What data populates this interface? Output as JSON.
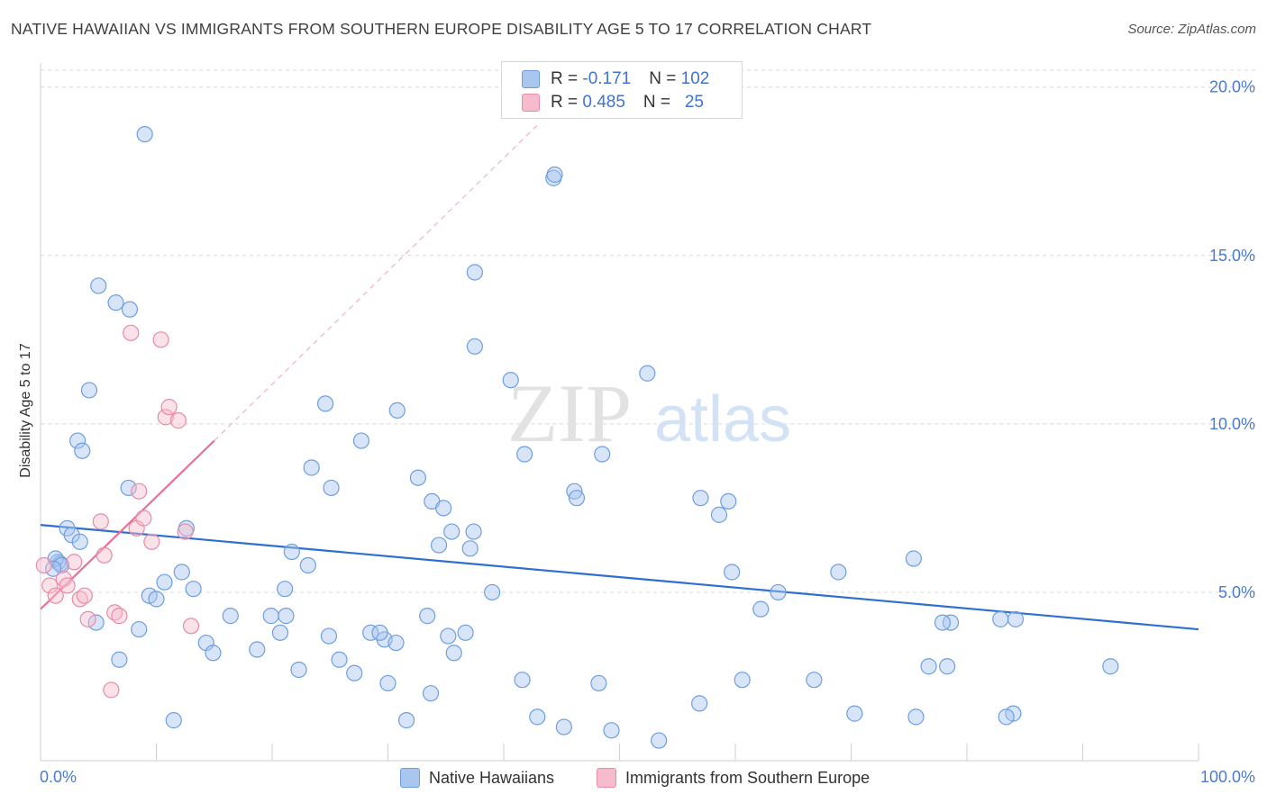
{
  "title": "NATIVE HAWAIIAN VS IMMIGRANTS FROM SOUTHERN EUROPE DISABILITY AGE 5 TO 17 CORRELATION CHART",
  "source": "Source: ZipAtlas.com",
  "watermark": {
    "zip": "ZIP",
    "atlas": "atlas"
  },
  "colors": {
    "blue_fill": "#a9c6ef",
    "blue_stroke": "#6e9ee0",
    "blue_line": "#2f6fd0",
    "pink_fill": "#f6bccd",
    "pink_stroke": "#e98aa7",
    "pink_line": "#e8719a",
    "grid": "#d9d9d9",
    "tick_text": "#4a7bd1"
  },
  "legend": {
    "rows": [
      {
        "r_label": "R = ",
        "r_value": "-0.171",
        "n_label": "N = ",
        "n_value": "102"
      },
      {
        "r_label": "R = ",
        "r_value": "0.485",
        "n_label": "N = ",
        "n_value": "  25"
      }
    ]
  },
  "chart_data": {
    "type": "scatter",
    "title": "NATIVE HAWAIIAN VS IMMIGRANTS FROM SOUTHERN EUROPE DISABILITY AGE 5 TO 17 CORRELATION CHART",
    "xlabel": "",
    "ylabel": "Disability Age 5 to 17",
    "xlim": [
      0,
      100
    ],
    "ylim": [
      0,
      20.5
    ],
    "x_ticks": [
      "0.0%",
      "100.0%"
    ],
    "y_ticks": [
      {
        "value": 5,
        "label": "5.0%"
      },
      {
        "value": 10,
        "label": "10.0%"
      },
      {
        "value": 15,
        "label": "15.0%"
      },
      {
        "value": 20,
        "label": "20.0%"
      }
    ],
    "series": [
      {
        "name": "Native Hawaiians",
        "color": "#a9c6ef",
        "r": -0.171,
        "n": 102,
        "trend": {
          "x0": 0,
          "y0": 7.0,
          "x1": 100,
          "y1": 3.9
        },
        "points": [
          [
            9,
            18.6
          ],
          [
            37.5,
            14.5
          ],
          [
            5,
            14.1
          ],
          [
            6.5,
            13.6
          ],
          [
            7.7,
            13.4
          ],
          [
            37.5,
            12.3
          ],
          [
            4.2,
            11.0
          ],
          [
            44.3,
            17.3
          ],
          [
            44.4,
            17.4
          ],
          [
            1.5,
            5.9
          ],
          [
            1.7,
            5.85
          ],
          [
            1.3,
            6.0
          ],
          [
            1.8,
            5.8
          ],
          [
            2.3,
            6.9
          ],
          [
            2.7,
            6.7
          ],
          [
            3.4,
            6.5
          ],
          [
            1.1,
            5.7
          ],
          [
            3.2,
            9.5
          ],
          [
            3.6,
            9.2
          ],
          [
            7.6,
            8.1
          ],
          [
            12.6,
            6.9
          ],
          [
            21.7,
            6.2
          ],
          [
            23.4,
            8.7
          ],
          [
            24.6,
            10.6
          ],
          [
            25.1,
            8.1
          ],
          [
            27.7,
            9.5
          ],
          [
            30.8,
            10.4
          ],
          [
            32.6,
            8.4
          ],
          [
            33.8,
            7.7
          ],
          [
            34.8,
            7.5
          ],
          [
            35.5,
            6.8
          ],
          [
            34.4,
            6.4
          ],
          [
            37.1,
            6.3
          ],
          [
            37.4,
            6.8
          ],
          [
            40.6,
            11.3
          ],
          [
            41.8,
            9.1
          ],
          [
            46.1,
            8.0
          ],
          [
            46.3,
            7.8
          ],
          [
            48.5,
            9.1
          ],
          [
            52.4,
            11.5
          ],
          [
            59.7,
            5.6
          ],
          [
            59.4,
            7.7
          ],
          [
            62.2,
            4.5
          ],
          [
            57,
            7.8
          ],
          [
            58.6,
            7.3
          ],
          [
            68.9,
            5.6
          ],
          [
            75.4,
            6.0
          ],
          [
            78.6,
            4.1
          ],
          [
            77.9,
            4.1
          ],
          [
            78.3,
            2.8
          ],
          [
            84,
            1.4
          ],
          [
            84.2,
            4.2
          ],
          [
            82.9,
            4.2
          ],
          [
            92.4,
            2.8
          ],
          [
            9.4,
            4.9
          ],
          [
            12.2,
            5.6
          ],
          [
            10.7,
            5.3
          ],
          [
            14.3,
            3.5
          ],
          [
            14.9,
            3.2
          ],
          [
            18.7,
            3.3
          ],
          [
            20.7,
            3.8
          ],
          [
            19.9,
            4.3
          ],
          [
            21.2,
            4.3
          ],
          [
            23.1,
            5.8
          ],
          [
            24.9,
            3.7
          ],
          [
            28.5,
            3.8
          ],
          [
            29.7,
            3.6
          ],
          [
            30.7,
            3.5
          ],
          [
            33.4,
            4.3
          ],
          [
            35.2,
            3.7
          ],
          [
            35.7,
            3.2
          ],
          [
            36.7,
            3.8
          ],
          [
            41.6,
            2.4
          ],
          [
            42.9,
            1.3
          ],
          [
            45.2,
            1.0
          ],
          [
            48.2,
            2.3
          ],
          [
            49.3,
            0.9
          ],
          [
            53.4,
            0.6
          ],
          [
            56.9,
            1.7
          ],
          [
            60.6,
            2.4
          ],
          [
            63.7,
            5.0
          ],
          [
            66.8,
            2.4
          ],
          [
            70.3,
            1.4
          ],
          [
            75.6,
            1.3
          ],
          [
            83.4,
            1.3
          ],
          [
            76.7,
            2.8
          ],
          [
            11.5,
            1.2
          ],
          [
            8.5,
            3.9
          ],
          [
            6.8,
            3.0
          ],
          [
            10,
            4.8
          ],
          [
            4.8,
            4.1
          ],
          [
            13.2,
            5.1
          ],
          [
            16.4,
            4.3
          ],
          [
            21.1,
            5.1
          ],
          [
            22.3,
            2.7
          ],
          [
            25.8,
            3.0
          ],
          [
            27.1,
            2.6
          ],
          [
            29.3,
            3.8
          ],
          [
            31.6,
            1.2
          ],
          [
            33.7,
            2.0
          ],
          [
            30,
            2.3
          ],
          [
            39,
            5.0
          ]
        ]
      },
      {
        "name": "Immigrants from Southern Europe",
        "color": "#f6bccd",
        "r": 0.485,
        "n": 25,
        "trend": {
          "x0": 0,
          "y0": 4.5,
          "x1": 15,
          "y1": 9.5
        },
        "trend_extended": {
          "x0": 15,
          "y0": 9.5,
          "x1": 43,
          "y1": 18.9
        },
        "points": [
          [
            0.3,
            5.8
          ],
          [
            0.8,
            5.2
          ],
          [
            1.3,
            4.9
          ],
          [
            2.0,
            5.4
          ],
          [
            2.3,
            5.2
          ],
          [
            2.9,
            5.9
          ],
          [
            3.4,
            4.8
          ],
          [
            3.8,
            4.9
          ],
          [
            4.1,
            4.2
          ],
          [
            5.2,
            7.1
          ],
          [
            5.5,
            6.1
          ],
          [
            6.4,
            4.4
          ],
          [
            6.8,
            4.3
          ],
          [
            7.8,
            12.7
          ],
          [
            8.3,
            6.9
          ],
          [
            8.5,
            8.0
          ],
          [
            8.9,
            7.2
          ],
          [
            9.6,
            6.5
          ],
          [
            10.4,
            12.5
          ],
          [
            10.8,
            10.2
          ],
          [
            11.1,
            10.5
          ],
          [
            11.9,
            10.1
          ],
          [
            12.5,
            6.8
          ],
          [
            13.0,
            4.0
          ],
          [
            6.1,
            2.1
          ]
        ]
      }
    ]
  },
  "bottom_legend": [
    "Native Hawaiians",
    "Immigrants from Southern Europe"
  ]
}
